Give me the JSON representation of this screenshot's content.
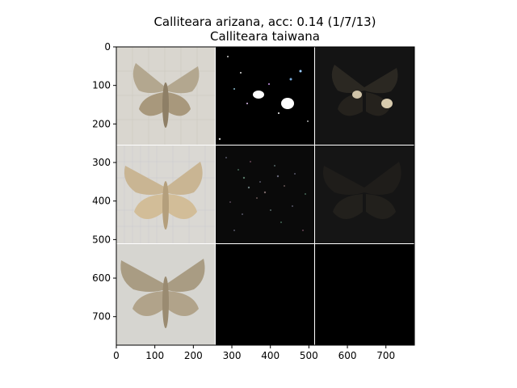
{
  "chart_data": {
    "type": "image-grid",
    "title": "Calliteara arizana, acc: 0.14 (1/7/13)",
    "subtitle": "Calliteara taiwana",
    "xlim": [
      0,
      774
    ],
    "ylim": [
      774,
      0
    ],
    "x_ticks": [
      0,
      100,
      200,
      300,
      400,
      500,
      600,
      700
    ],
    "y_ticks": [
      0,
      100,
      200,
      300,
      400,
      500,
      600,
      700
    ],
    "grid": {
      "rows": 3,
      "cols": 3,
      "cells": [
        [
          "moth photo",
          "saliency map (sparse)",
          "masked overlay"
        ],
        [
          "moth photo",
          "saliency map (noisy)",
          "masked overlay"
        ],
        [
          "moth photo",
          "empty",
          "empty"
        ]
      ]
    },
    "colors": {
      "photo_bg": "#d9d6cf",
      "moth": "#a8977a",
      "black_panel": "#000000",
      "dark_panel": "#141414",
      "separator": "#ffffff"
    }
  }
}
